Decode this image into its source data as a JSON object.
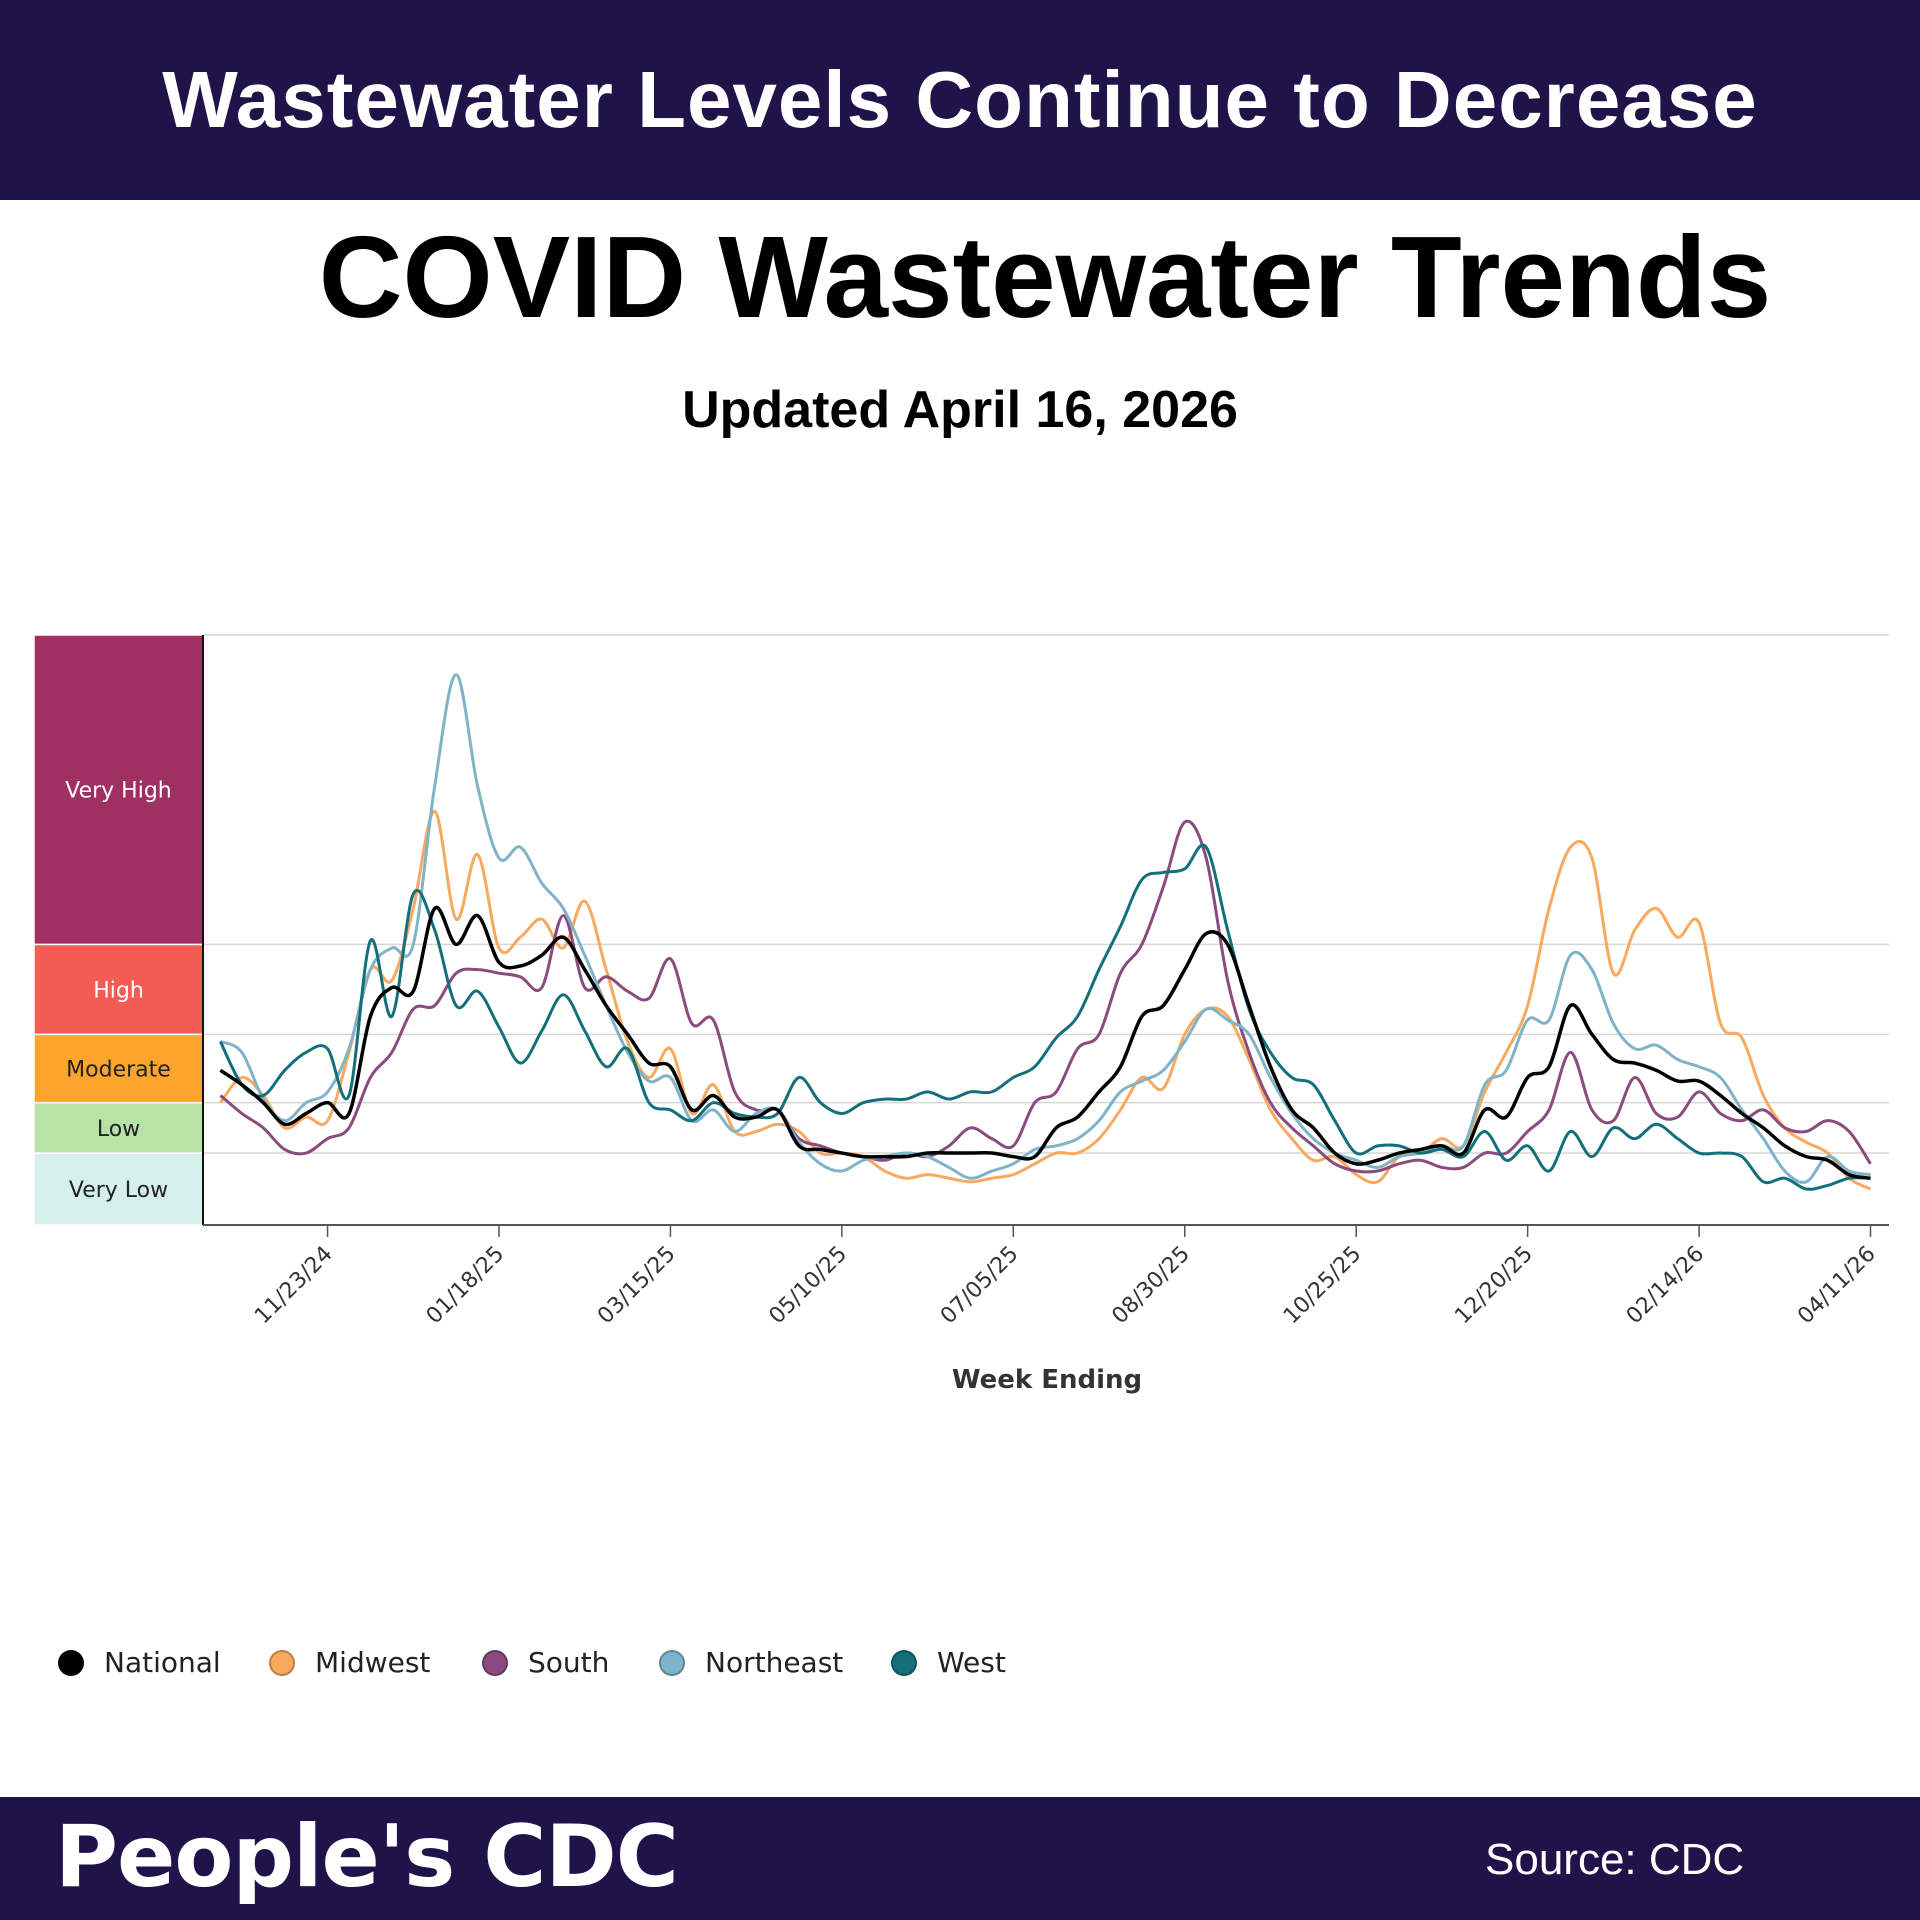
{
  "header": {
    "banner": "Wastewater Levels Continue to Decrease"
  },
  "title": "COVID Wastewater Trends",
  "subtitle": "Updated April 16, 2026",
  "footer": {
    "brand": "People's CDC",
    "source": "Source: CDC"
  },
  "chart_data": {
    "type": "line",
    "title": "COVID Wastewater Trends",
    "xlabel": "Week Ending",
    "ylabel": "",
    "grid": true,
    "legend_placement": "bottom",
    "ylim": [
      0,
      16.4
    ],
    "levels": [
      {
        "label": "Very Low",
        "from": 0,
        "to": 2,
        "color": "#d5f0ec",
        "text_color": "#222222"
      },
      {
        "label": "Low",
        "from": 2,
        "to": 3.4,
        "color": "#b8e2a8",
        "text_color": "#222222"
      },
      {
        "label": "Moderate",
        "from": 3.4,
        "to": 5.3,
        "color": "#fca52d",
        "text_color": "#222222"
      },
      {
        "label": "High",
        "from": 5.3,
        "to": 7.8,
        "color": "#f25c54",
        "text_color": "#ffffff"
      },
      {
        "label": "Very High",
        "from": 7.8,
        "to": 16.4,
        "color": "#a03062",
        "text_color": "#ffffff"
      }
    ],
    "x_ticks": [
      "11/23/24",
      "01/18/25",
      "03/15/25",
      "05/10/25",
      "07/05/25",
      "08/30/25",
      "10/25/25",
      "12/20/25",
      "02/14/26",
      "04/11/26"
    ],
    "x": [
      "10/19/24",
      "10/26/24",
      "11/02/24",
      "11/09/24",
      "11/16/24",
      "11/23/24",
      "11/30/24",
      "12/07/24",
      "12/14/24",
      "12/21/24",
      "12/28/24",
      "01/04/25",
      "01/11/25",
      "01/18/25",
      "01/25/25",
      "02/01/25",
      "02/08/25",
      "02/15/25",
      "02/22/25",
      "03/01/25",
      "03/08/25",
      "03/15/25",
      "03/22/25",
      "03/29/25",
      "04/05/25",
      "04/12/25",
      "04/19/25",
      "04/26/25",
      "05/03/25",
      "05/10/25",
      "05/17/25",
      "05/24/25",
      "05/31/25",
      "06/07/25",
      "06/14/25",
      "06/21/25",
      "06/28/25",
      "07/05/25",
      "07/12/25",
      "07/19/25",
      "07/26/25",
      "08/02/25",
      "08/09/25",
      "08/16/25",
      "08/23/25",
      "08/30/25",
      "09/06/25",
      "09/13/25",
      "09/20/25",
      "09/27/25",
      "10/04/25",
      "10/11/25",
      "10/18/25",
      "10/25/25",
      "11/01/25",
      "11/08/25",
      "11/15/25",
      "11/22/25",
      "11/29/25",
      "12/06/25",
      "12/13/25",
      "12/20/25",
      "12/27/25",
      "01/03/26",
      "01/10/26",
      "01/17/26",
      "01/24/26",
      "01/31/26",
      "02/07/26",
      "02/14/26",
      "02/21/26",
      "02/28/26",
      "03/07/26",
      "03/14/26",
      "03/21/26",
      "03/28/26",
      "04/04/26",
      "04/11/26"
    ],
    "series": [
      {
        "name": "Midwest",
        "color": "#f8a95f",
        "values": [
          3.4,
          4.1,
          3.6,
          2.7,
          3.0,
          2.9,
          4.8,
          7.1,
          6.8,
          8.8,
          11.5,
          8.5,
          10.3,
          7.7,
          8.0,
          8.5,
          7.7,
          9.0,
          7.1,
          5.1,
          4.1,
          4.9,
          3.1,
          3.9,
          2.6,
          2.6,
          2.8,
          2.6,
          2.0,
          2.0,
          1.9,
          1.5,
          1.3,
          1.4,
          1.3,
          1.2,
          1.3,
          1.4,
          1.7,
          2.0,
          2.0,
          2.4,
          3.2,
          4.1,
          3.8,
          5.3,
          6.0,
          5.8,
          4.6,
          3.2,
          2.4,
          1.8,
          1.9,
          1.4,
          1.2,
          1.9,
          2.0,
          2.4,
          2.2,
          3.7,
          4.8,
          6.1,
          8.8,
          10.5,
          10.2,
          7.0,
          8.2,
          8.8,
          8.0,
          8.4,
          5.6,
          5.2,
          3.6,
          2.7,
          2.3,
          2.0,
          1.3,
          1.0
        ]
      },
      {
        "name": "South",
        "color": "#8a4b7f",
        "values": [
          3.6,
          3.1,
          2.7,
          2.1,
          2.0,
          2.4,
          2.7,
          4.1,
          4.8,
          6.0,
          6.1,
          7.0,
          7.1,
          7.0,
          6.9,
          6.6,
          8.6,
          6.6,
          6.9,
          6.5,
          6.3,
          7.4,
          5.6,
          5.7,
          3.7,
          3.2,
          3.2,
          2.4,
          2.2,
          2.0,
          1.9,
          1.8,
          2.0,
          1.9,
          2.2,
          2.7,
          2.4,
          2.2,
          3.4,
          3.7,
          4.9,
          5.3,
          7.0,
          7.8,
          9.4,
          11.2,
          10.2,
          6.8,
          4.8,
          3.4,
          2.7,
          2.2,
          1.7,
          1.5,
          1.5,
          1.7,
          1.8,
          1.6,
          1.6,
          2.0,
          2.0,
          2.6,
          3.2,
          4.8,
          3.2,
          2.9,
          4.1,
          3.1,
          3.0,
          3.7,
          3.1,
          2.9,
          3.2,
          2.7,
          2.6,
          2.9,
          2.6,
          1.7
        ]
      },
      {
        "name": "Northeast",
        "color": "#7fb3c8",
        "values": [
          5.1,
          4.8,
          3.5,
          2.9,
          3.4,
          3.7,
          4.9,
          7.1,
          7.7,
          7.8,
          12.2,
          15.3,
          12.2,
          10.2,
          10.5,
          9.5,
          8.8,
          7.5,
          6.1,
          4.8,
          4.0,
          4.1,
          2.9,
          3.2,
          2.6,
          3.1,
          3.2,
          2.3,
          1.7,
          1.5,
          1.8,
          1.9,
          2.0,
          1.9,
          1.6,
          1.3,
          1.5,
          1.7,
          2.1,
          2.2,
          2.4,
          2.9,
          3.7,
          4.0,
          4.3,
          5.1,
          6.0,
          5.7,
          5.3,
          4.1,
          3.1,
          2.4,
          2.0,
          1.8,
          1.6,
          1.9,
          2.0,
          2.2,
          2.2,
          3.9,
          4.3,
          5.7,
          5.7,
          7.5,
          7.1,
          5.6,
          4.9,
          5.0,
          4.6,
          4.4,
          4.1,
          3.2,
          2.4,
          1.5,
          1.2,
          1.9,
          1.5,
          1.4
        ]
      },
      {
        "name": "West",
        "color": "#13707a",
        "values": [
          5.1,
          3.9,
          3.6,
          4.3,
          4.8,
          4.9,
          3.6,
          7.9,
          5.8,
          9.2,
          8.2,
          6.1,
          6.5,
          5.5,
          4.5,
          5.4,
          6.4,
          5.4,
          4.4,
          4.9,
          3.4,
          3.2,
          2.9,
          3.4,
          3.1,
          3.0,
          3.1,
          4.1,
          3.4,
          3.1,
          3.4,
          3.5,
          3.5,
          3.7,
          3.5,
          3.7,
          3.7,
          4.1,
          4.4,
          5.2,
          5.8,
          7.1,
          8.3,
          9.6,
          9.8,
          9.9,
          10.5,
          8.2,
          6.0,
          4.8,
          4.1,
          3.9,
          2.9,
          2.0,
          2.2,
          2.2,
          2.0,
          2.1,
          1.9,
          2.6,
          1.8,
          2.2,
          1.5,
          2.6,
          1.9,
          2.7,
          2.4,
          2.8,
          2.4,
          2.0,
          2.0,
          1.9,
          1.2,
          1.3,
          1.0,
          1.1,
          1.3,
          1.3
        ]
      },
      {
        "name": "National",
        "color": "#000000",
        "values": [
          4.3,
          3.9,
          3.4,
          2.8,
          3.1,
          3.4,
          3.1,
          5.8,
          6.6,
          6.5,
          8.8,
          7.8,
          8.6,
          7.3,
          7.2,
          7.5,
          8.0,
          7.1,
          6.1,
          5.3,
          4.5,
          4.4,
          3.2,
          3.6,
          3.0,
          3.0,
          3.2,
          2.2,
          2.1,
          2.0,
          1.9,
          1.9,
          1.9,
          2.0,
          2.0,
          2.0,
          2.0,
          1.9,
          1.9,
          2.7,
          3.0,
          3.7,
          4.4,
          5.8,
          6.1,
          7.1,
          8.1,
          7.8,
          6.1,
          4.4,
          3.2,
          2.7,
          2.0,
          1.7,
          1.8,
          2.0,
          2.1,
          2.2,
          2.0,
          3.2,
          3.0,
          4.1,
          4.4,
          6.1,
          5.3,
          4.6,
          4.5,
          4.3,
          4.0,
          4.0,
          3.6,
          3.1,
          2.7,
          2.2,
          1.9,
          1.8,
          1.4,
          1.3
        ]
      }
    ],
    "legend": [
      {
        "name": "National",
        "color": "#000000"
      },
      {
        "name": "Midwest",
        "color": "#f8a95f"
      },
      {
        "name": "South",
        "color": "#8a4b7f"
      },
      {
        "name": "Northeast",
        "color": "#7fb3c8"
      },
      {
        "name": "West",
        "color": "#13707a"
      }
    ]
  }
}
